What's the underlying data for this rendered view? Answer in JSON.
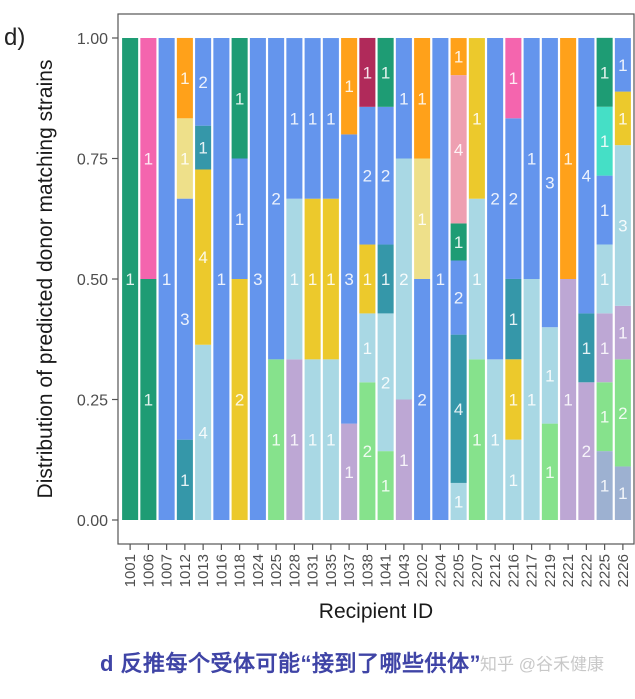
{
  "panel_label": "d)",
  "caption": "d 反推每个受体可能“接到了哪些供体”",
  "watermark": "知乎 @谷禾健康",
  "chart_data": {
    "type": "bar",
    "stacked": true,
    "title": "",
    "xlabel": "Recipient ID",
    "ylabel": "Distribution of predicted donor matching strains",
    "ylim": [
      0,
      1
    ],
    "yticks": [
      0,
      0.25,
      0.5,
      0.75,
      1
    ],
    "ytick_labels": [
      "0.00",
      "0.25",
      "0.50",
      "0.75",
      "1.00"
    ],
    "grid": false,
    "legend": "none",
    "palette": {
      "green": "#1e9c74",
      "pink": "#f465ae",
      "blue": "#6495ed",
      "orange": "#ffa11a",
      "lightyellow": "#eee08a",
      "teal": "#3597a9",
      "yellow": "#ecc92c",
      "lightblue": "#a9d8e4",
      "lightgreen": "#86e28c",
      "lavender": "#bda7d4",
      "maroon": "#b02a5a",
      "rose": "#ee9fb1",
      "turquoise": "#45dfc6",
      "slateblue": "#9db1d1"
    },
    "categories": [
      "1001",
      "1006",
      "1007",
      "1012",
      "1013",
      "1016",
      "1018",
      "1024",
      "1025",
      "1028",
      "1031",
      "1035",
      "1037",
      "1038",
      "1041",
      "1043",
      "2202",
      "2204",
      "2205",
      "2207",
      "2212",
      "2216",
      "2217",
      "2219",
      "2221",
      "2222",
      "2225",
      "2226"
    ],
    "bars": [
      {
        "id": "1001",
        "segments": [
          {
            "color": "green",
            "count": 1,
            "frac": 1
          }
        ]
      },
      {
        "id": "1006",
        "segments": [
          {
            "color": "green",
            "count": 1,
            "frac": 0.5
          },
          {
            "color": "pink",
            "count": 1,
            "frac": 0.5
          }
        ]
      },
      {
        "id": "1007",
        "segments": [
          {
            "color": "blue",
            "count": 1,
            "frac": 1
          }
        ]
      },
      {
        "id": "1012",
        "segments": [
          {
            "color": "teal",
            "count": 1,
            "frac": 0.1667
          },
          {
            "color": "blue",
            "count": 3,
            "frac": 0.5
          },
          {
            "color": "lightyellow",
            "count": 1,
            "frac": 0.1667
          },
          {
            "color": "orange",
            "count": 1,
            "frac": 0.1667
          }
        ]
      },
      {
        "id": "1013",
        "segments": [
          {
            "color": "lightblue",
            "count": 4,
            "frac": 0.3636
          },
          {
            "color": "yellow",
            "count": 4,
            "frac": 0.3636
          },
          {
            "color": "teal",
            "count": 1,
            "frac": 0.0909
          },
          {
            "color": "blue",
            "count": 2,
            "frac": 0.1818
          }
        ]
      },
      {
        "id": "1016",
        "segments": [
          {
            "color": "blue",
            "count": 1,
            "frac": 1
          }
        ]
      },
      {
        "id": "1018",
        "segments": [
          {
            "color": "yellow",
            "count": 2,
            "frac": 0.5
          },
          {
            "color": "blue",
            "count": 1,
            "frac": 0.25
          },
          {
            "color": "green",
            "count": 1,
            "frac": 0.25
          }
        ]
      },
      {
        "id": "1024",
        "segments": [
          {
            "color": "blue",
            "count": 3,
            "frac": 1
          }
        ]
      },
      {
        "id": "1025",
        "segments": [
          {
            "color": "lightgreen",
            "count": 1,
            "frac": 0.3333
          },
          {
            "color": "blue",
            "count": 2,
            "frac": 0.6667
          }
        ]
      },
      {
        "id": "1028",
        "segments": [
          {
            "color": "lavender",
            "count": 1,
            "frac": 0.3333
          },
          {
            "color": "lightblue",
            "count": 1,
            "frac": 0.3333
          },
          {
            "color": "blue",
            "count": 1,
            "frac": 0.3333
          }
        ]
      },
      {
        "id": "1031",
        "segments": [
          {
            "color": "lightblue",
            "count": 1,
            "frac": 0.3333
          },
          {
            "color": "yellow",
            "count": 1,
            "frac": 0.3333
          },
          {
            "color": "blue",
            "count": 1,
            "frac": 0.3333
          }
        ]
      },
      {
        "id": "1035",
        "segments": [
          {
            "color": "lightblue",
            "count": 1,
            "frac": 0.3333
          },
          {
            "color": "yellow",
            "count": 1,
            "frac": 0.3333
          },
          {
            "color": "blue",
            "count": 1,
            "frac": 0.3333
          }
        ]
      },
      {
        "id": "1037",
        "segments": [
          {
            "color": "lavender",
            "count": 1,
            "frac": 0.2
          },
          {
            "color": "blue",
            "count": 3,
            "frac": 0.6
          },
          {
            "color": "orange",
            "count": 1,
            "frac": 0.2
          }
        ]
      },
      {
        "id": "1038",
        "segments": [
          {
            "color": "lightgreen",
            "count": 2,
            "frac": 0.2857
          },
          {
            "color": "lightblue",
            "count": 1,
            "frac": 0.1429
          },
          {
            "color": "yellow",
            "count": 1,
            "frac": 0.1429
          },
          {
            "color": "blue",
            "count": 2,
            "frac": 0.2857
          },
          {
            "color": "maroon",
            "count": 1,
            "frac": 0.1429
          }
        ]
      },
      {
        "id": "1041",
        "segments": [
          {
            "color": "lightgreen",
            "count": 1,
            "frac": 0.1429
          },
          {
            "color": "lightblue",
            "count": 2,
            "frac": 0.2857
          },
          {
            "color": "teal",
            "count": 1,
            "frac": 0.1429
          },
          {
            "color": "blue",
            "count": 2,
            "frac": 0.2857
          },
          {
            "color": "green",
            "count": 1,
            "frac": 0.1429
          }
        ]
      },
      {
        "id": "1043",
        "segments": [
          {
            "color": "lavender",
            "count": 1,
            "frac": 0.25
          },
          {
            "color": "lightblue",
            "count": 2,
            "frac": 0.5
          },
          {
            "color": "blue",
            "count": 1,
            "frac": 0.25
          }
        ]
      },
      {
        "id": "2202",
        "segments": [
          {
            "color": "blue",
            "count": 2,
            "frac": 0.5
          },
          {
            "color": "lightyellow",
            "count": 1,
            "frac": 0.25
          },
          {
            "color": "orange",
            "count": 1,
            "frac": 0.25
          }
        ]
      },
      {
        "id": "2204",
        "segments": [
          {
            "color": "blue",
            "count": 1,
            "frac": 1
          }
        ]
      },
      {
        "id": "2205",
        "segments": [
          {
            "color": "lightblue",
            "count": 1,
            "frac": 0.0769
          },
          {
            "color": "teal",
            "count": 4,
            "frac": 0.3077
          },
          {
            "color": "blue",
            "count": 2,
            "frac": 0.1538
          },
          {
            "color": "green",
            "count": 1,
            "frac": 0.0769
          },
          {
            "color": "rose",
            "count": 4,
            "frac": 0.3077
          },
          {
            "color": "orange",
            "count": 1,
            "frac": 0.0769
          }
        ]
      },
      {
        "id": "2207",
        "segments": [
          {
            "color": "lightgreen",
            "count": 1,
            "frac": 0.3333
          },
          {
            "color": "lightblue",
            "count": 1,
            "frac": 0.3333
          },
          {
            "color": "yellow",
            "count": 1,
            "frac": 0.3333
          }
        ]
      },
      {
        "id": "2212",
        "segments": [
          {
            "color": "lightblue",
            "count": 1,
            "frac": 0.3333
          },
          {
            "color": "blue",
            "count": 2,
            "frac": 0.6667
          }
        ]
      },
      {
        "id": "2216",
        "segments": [
          {
            "color": "lightblue",
            "count": 1,
            "frac": 0.1667
          },
          {
            "color": "yellow",
            "count": 1,
            "frac": 0.1667
          },
          {
            "color": "teal",
            "count": 1,
            "frac": 0.1667
          },
          {
            "color": "blue",
            "count": 2,
            "frac": 0.3333
          },
          {
            "color": "pink",
            "count": 1,
            "frac": 0.1667
          }
        ]
      },
      {
        "id": "2217",
        "segments": [
          {
            "color": "lightblue",
            "count": 1,
            "frac": 0.5
          },
          {
            "color": "blue",
            "count": 1,
            "frac": 0.5
          }
        ]
      },
      {
        "id": "2219",
        "segments": [
          {
            "color": "lightgreen",
            "count": 1,
            "frac": 0.2
          },
          {
            "color": "lightblue",
            "count": 1,
            "frac": 0.2
          },
          {
            "color": "blue",
            "count": 3,
            "frac": 0.6
          }
        ]
      },
      {
        "id": "2221",
        "segments": [
          {
            "color": "lavender",
            "count": 1,
            "frac": 0.5
          },
          {
            "color": "orange",
            "count": 1,
            "frac": 0.5
          }
        ]
      },
      {
        "id": "2222",
        "segments": [
          {
            "color": "lavender",
            "count": 2,
            "frac": 0.2857
          },
          {
            "color": "teal",
            "count": 1,
            "frac": 0.1429
          },
          {
            "color": "blue",
            "count": 4,
            "frac": 0.5714
          }
        ]
      },
      {
        "id": "2225",
        "segments": [
          {
            "color": "slateblue",
            "count": 1,
            "frac": 0.1429
          },
          {
            "color": "lightgreen",
            "count": 1,
            "frac": 0.1429
          },
          {
            "color": "lavender",
            "count": 1,
            "frac": 0.1429
          },
          {
            "color": "lightblue",
            "count": 1,
            "frac": 0.1429
          },
          {
            "color": "blue",
            "count": 1,
            "frac": 0.1429
          },
          {
            "color": "turquoise",
            "count": 1,
            "frac": 0.1429
          },
          {
            "color": "green",
            "count": 1,
            "frac": 0.1429
          }
        ]
      },
      {
        "id": "2226",
        "segments": [
          {
            "color": "slateblue",
            "count": 1,
            "frac": 0.1111
          },
          {
            "color": "lightgreen",
            "count": 2,
            "frac": 0.2222
          },
          {
            "color": "lavender",
            "count": 1,
            "frac": 0.1111
          },
          {
            "color": "lightblue",
            "count": 3,
            "frac": 0.3333
          },
          {
            "color": "yellow",
            "count": 1,
            "frac": 0.1111
          },
          {
            "color": "blue",
            "count": 1,
            "frac": 0.1111
          }
        ]
      }
    ]
  }
}
